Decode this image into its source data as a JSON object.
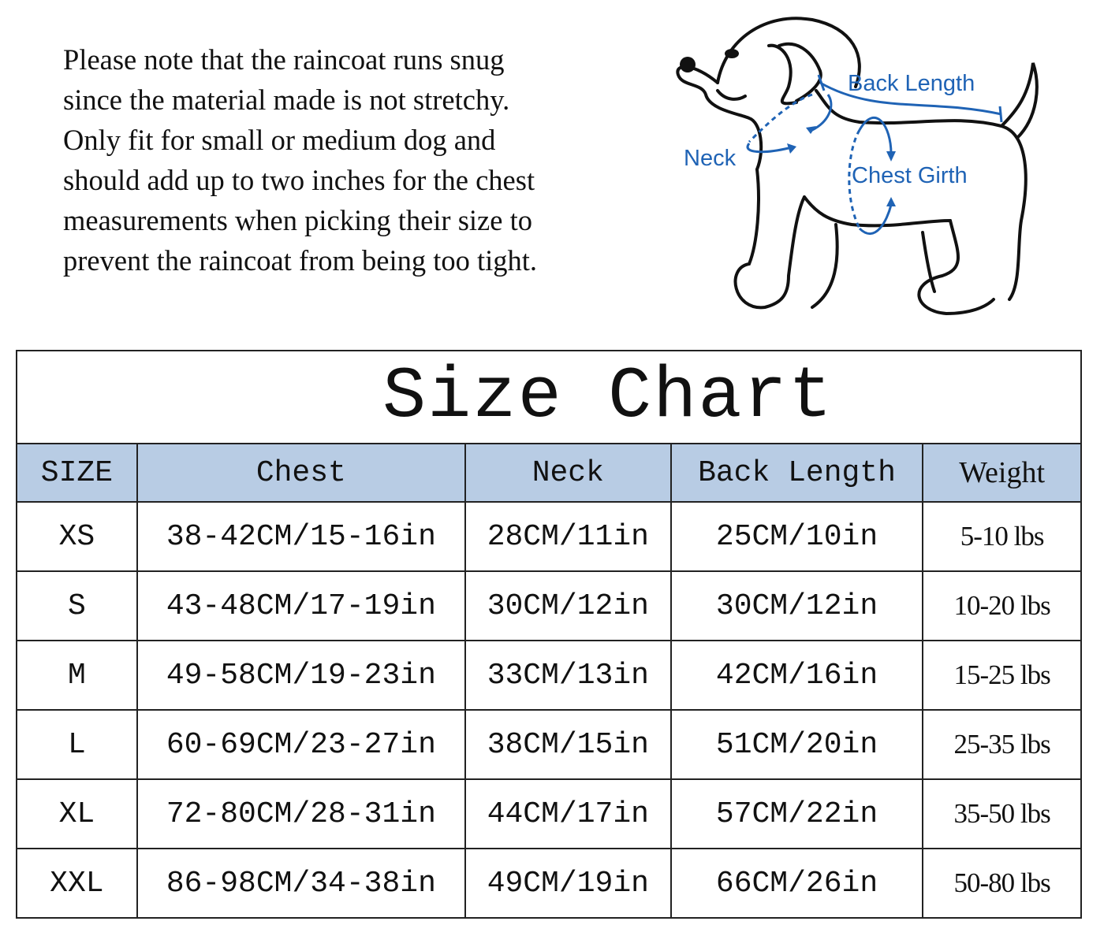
{
  "note": {
    "lines": [
      "Please note that the raincoat runs snug",
      "since the material made is not stretchy.",
      "Only fit for small or medium dog and",
      "should add up to two inches for the chest",
      "measurements when picking their size to",
      "prevent the raincoat from being too tight."
    ]
  },
  "diagram": {
    "labels": {
      "back_length": "Back Length",
      "neck": "Neck",
      "chest_girth": "Chest Girth"
    },
    "accent_color": "#1f63b5"
  },
  "size_chart": {
    "title": "Size Chart",
    "header_color": "#b8cce4",
    "columns": [
      "SIZE",
      "Chest",
      "Neck",
      "Back Length",
      "Weight"
    ],
    "rows": [
      [
        "XS",
        "38-42CM/15-16in",
        "28CM/11in",
        "25CM/10in",
        "5-10 lbs"
      ],
      [
        "S",
        "43-48CM/17-19in",
        "30CM/12in",
        "30CM/12in",
        "10-20 lbs"
      ],
      [
        "M",
        "49-58CM/19-23in",
        "33CM/13in",
        "42CM/16in",
        "15-25 lbs"
      ],
      [
        "L",
        "60-69CM/23-27in",
        "38CM/15in",
        "51CM/20in",
        "25-35 lbs"
      ],
      [
        "XL",
        "72-80CM/28-31in",
        "44CM/17in",
        "57CM/22in",
        "35-50 lbs"
      ],
      [
        "XXL",
        "86-98CM/34-38in",
        "49CM/19in",
        "66CM/26in",
        "50-80 lbs"
      ]
    ]
  }
}
